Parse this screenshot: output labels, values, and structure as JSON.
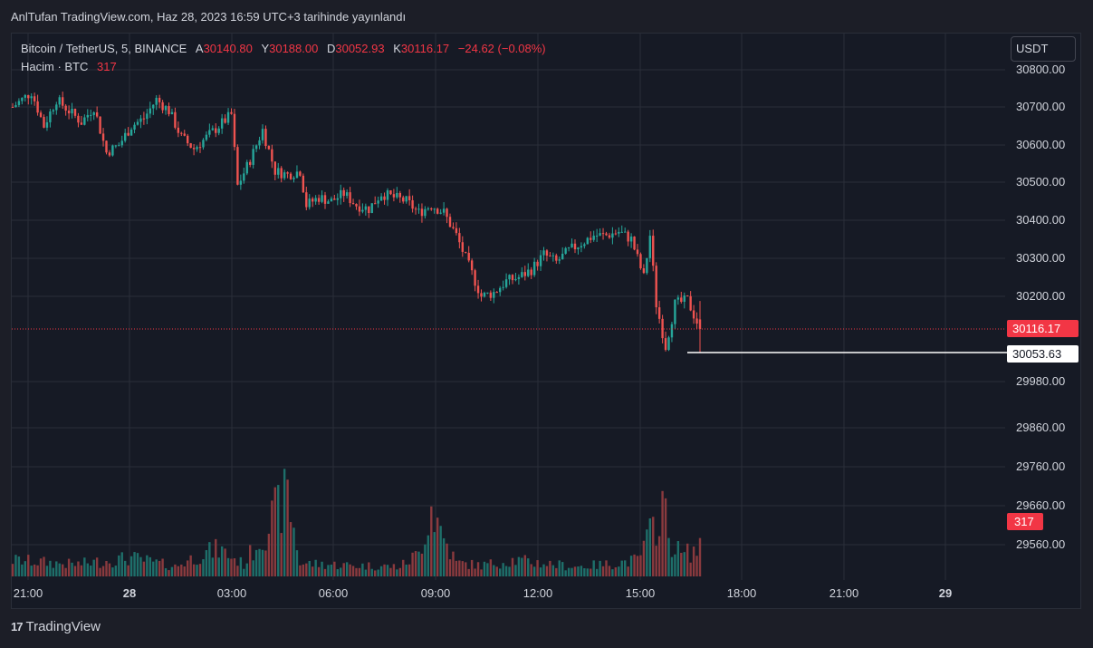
{
  "header": {
    "published_by": "AnlTufan TradingView.com, Haz 28, 2023 16:59 UTC+3 tarihinde yayınlandı"
  },
  "legend": {
    "symbol": "Bitcoin / TetherUS, 5, BINANCE",
    "open_label": "A",
    "open_value": "30140.80",
    "high_label": "Y",
    "high_value": "30188.00",
    "low_label": "D",
    "low_value": "30052.93",
    "close_label": "K",
    "close_value": "30116.17",
    "change": "−24.62 (−0.08%)",
    "volume_label": "Hacim · BTC",
    "volume_value": "317"
  },
  "toolbar": {
    "currency": "USDT"
  },
  "labels": {
    "last_price": "30116.17",
    "marker_price": "30053.63",
    "volume_last": "317"
  },
  "brand": {
    "logo": "17",
    "name": "TradingView"
  },
  "colors": {
    "up": "#26a69a",
    "down": "#ef5350",
    "up_volume": "#1e6f6a",
    "down_volume": "#8a3a3e",
    "grid": "#2a2e39",
    "text": "#d1d4dc",
    "last_price": "#f23645"
  },
  "chart_data": {
    "type": "candlestick",
    "symbol": "Bitcoin / TetherUS",
    "interval": "5",
    "exchange": "BINANCE",
    "y_ticks": [
      "30800.00",
      "30700.00",
      "30600.00",
      "30500.00",
      "30400.00",
      "30300.00",
      "30200.00",
      "29980.00",
      "29860.00",
      "29760.00",
      "29660.00",
      "29560.00"
    ],
    "x_ticks": [
      "21:00",
      "28",
      "03:00",
      "06:00",
      "09:00",
      "12:00",
      "15:00",
      "18:00",
      "21:00",
      "29"
    ],
    "last_price": 30116.17,
    "marker_price": 30053.63,
    "ohlc_last": {
      "open": 30140.8,
      "high": 30188.0,
      "low": 30052.93,
      "close": 30116.17
    },
    "close_path": [
      [
        0,
        30700
      ],
      [
        6,
        30740
      ],
      [
        10,
        30650
      ],
      [
        14,
        30720
      ],
      [
        18,
        30690
      ],
      [
        22,
        30660
      ],
      [
        26,
        30700
      ],
      [
        30,
        30580
      ],
      [
        34,
        30600
      ],
      [
        38,
        30650
      ],
      [
        42,
        30670
      ],
      [
        46,
        30720
      ],
      [
        50,
        30690
      ],
      [
        54,
        30620
      ],
      [
        58,
        30590
      ],
      [
        62,
        30620
      ],
      [
        66,
        30650
      ],
      [
        70,
        30680
      ],
      [
        72,
        30490
      ],
      [
        76,
        30560
      ],
      [
        80,
        30640
      ],
      [
        84,
        30530
      ],
      [
        88,
        30520
      ],
      [
        92,
        30530
      ],
      [
        94,
        30440
      ],
      [
        98,
        30460
      ],
      [
        102,
        30450
      ],
      [
        106,
        30470
      ],
      [
        110,
        30440
      ],
      [
        114,
        30430
      ],
      [
        118,
        30470
      ],
      [
        122,
        30460
      ],
      [
        126,
        30450
      ],
      [
        130,
        30420
      ],
      [
        134,
        30440
      ],
      [
        138,
        30420
      ],
      [
        142,
        30360
      ],
      [
        146,
        30280
      ],
      [
        150,
        30200
      ],
      [
        154,
        30210
      ],
      [
        158,
        30240
      ],
      [
        162,
        30250
      ],
      [
        166,
        30270
      ],
      [
        170,
        30310
      ],
      [
        174,
        30290
      ],
      [
        178,
        30320
      ],
      [
        182,
        30340
      ],
      [
        186,
        30360
      ],
      [
        190,
        30360
      ],
      [
        194,
        30370
      ],
      [
        198,
        30350
      ],
      [
        202,
        30250
      ],
      [
        204,
        30360
      ],
      [
        206,
        30180
      ],
      [
        209,
        30070
      ],
      [
        212,
        30180
      ],
      [
        216,
        30190
      ],
      [
        220,
        30116
      ]
    ],
    "volume_path": [
      [
        0,
        30
      ],
      [
        20,
        22
      ],
      [
        38,
        34
      ],
      [
        52,
        18
      ],
      [
        60,
        40
      ],
      [
        66,
        50
      ],
      [
        74,
        22
      ],
      [
        88,
        150
      ],
      [
        92,
        24
      ],
      [
        110,
        20
      ],
      [
        124,
        18
      ],
      [
        130,
        42
      ],
      [
        134,
        130
      ],
      [
        138,
        70
      ],
      [
        142,
        25
      ],
      [
        150,
        20
      ],
      [
        160,
        30
      ],
      [
        180,
        18
      ],
      [
        190,
        22
      ],
      [
        200,
        30
      ],
      [
        206,
        100
      ],
      [
        208,
        140
      ],
      [
        210,
        70
      ],
      [
        214,
        40
      ],
      [
        220,
        50
      ]
    ]
  }
}
